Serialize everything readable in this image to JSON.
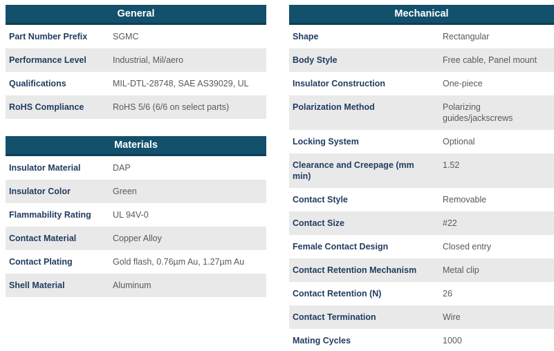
{
  "colors": {
    "header_bg": "#12506C",
    "header_border": "#0D3E54",
    "row_alt_bg": "#E9E9E9",
    "label_text": "#1F3B5E",
    "value_text": "#58595B",
    "header_text": "#FFFFFF"
  },
  "tables": {
    "general": {
      "title": "General",
      "rows": [
        {
          "label": "Part Number Prefix",
          "value": "SGMC"
        },
        {
          "label": "Performance Level",
          "value": "Industrial, Mil/aero"
        },
        {
          "label": "Qualifications",
          "value": "MIL-DTL-28748, SAE AS39029, UL"
        },
        {
          "label": "RoHS Compliance",
          "value": "RoHS 5/6 (6/6 on select parts)"
        }
      ]
    },
    "materials": {
      "title": "Materials",
      "rows": [
        {
          "label": "Insulator Material",
          "value": "DAP"
        },
        {
          "label": "Insulator Color",
          "value": "Green"
        },
        {
          "label": "Flammability Rating",
          "value": "UL 94V-0"
        },
        {
          "label": "Contact Material",
          "value": "Copper Alloy"
        },
        {
          "label": "Contact Plating",
          "value": "Gold flash, 0.76µm Au, 1.27µm Au"
        },
        {
          "label": "Shell Material",
          "value": "Aluminum"
        }
      ]
    },
    "mechanical": {
      "title": "Mechanical",
      "rows": [
        {
          "label": "Shape",
          "value": "Rectangular"
        },
        {
          "label": "Body Style",
          "value": "Free cable, Panel mount"
        },
        {
          "label": "Insulator Construction",
          "value": "One-piece"
        },
        {
          "label": "Polarization Method",
          "value": "Polarizing guides/jackscrews"
        },
        {
          "label": "Locking System",
          "value": "Optional"
        },
        {
          "label": "Clearance and Creepage (mm min)",
          "value": "1.52"
        },
        {
          "label": "Contact Style",
          "value": "Removable"
        },
        {
          "label": "Contact Size",
          "value": "#22"
        },
        {
          "label": "Female Contact Design",
          "value": "Closed entry"
        },
        {
          "label": "Contact Retention Mechanism",
          "value": "Metal clip"
        },
        {
          "label": "Contact Retention (N)",
          "value": "26"
        },
        {
          "label": "Contact Termination",
          "value": "Wire"
        },
        {
          "label": "Mating Cycles",
          "value": "1000"
        }
      ]
    }
  }
}
